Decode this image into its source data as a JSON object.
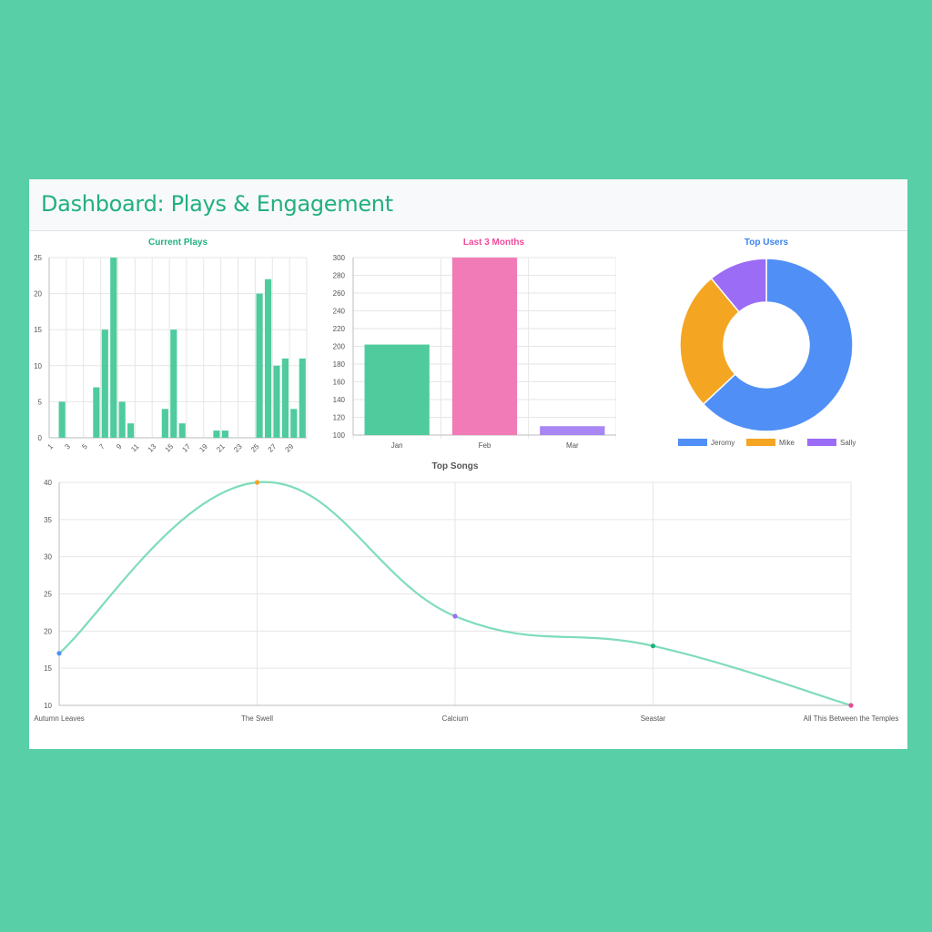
{
  "header": {
    "title": "Dashboard: Plays & Engagement"
  },
  "colors": {
    "green": "#4fcb9e",
    "pink": "#f07bb6",
    "purple": "#a887f4",
    "blue": "#4f8ff6",
    "orange": "#f4a522",
    "violet": "#9b6cf6",
    "title_green": "#21b07f",
    "title_pink": "#ef4b9a",
    "title_blue": "#3c83e8",
    "title_gray": "#555555"
  },
  "chart_data": [
    {
      "id": "current-plays",
      "type": "bar",
      "title": "Current Plays",
      "x": [
        "1",
        "2",
        "3",
        "4",
        "5",
        "6",
        "7",
        "8",
        "9",
        "10",
        "11",
        "12",
        "13",
        "14",
        "15",
        "16",
        "17",
        "18",
        "19",
        "20",
        "21",
        "22",
        "23",
        "24",
        "25",
        "26",
        "27",
        "28",
        "29",
        "30"
      ],
      "x_tick_labels": [
        "1",
        "3",
        "5",
        "7",
        "9",
        "11",
        "13",
        "15",
        "17",
        "19",
        "21",
        "23",
        "25",
        "27",
        "29"
      ],
      "values": [
        0,
        5,
        0,
        0,
        0,
        7,
        15,
        25,
        5,
        2,
        0,
        0,
        0,
        4,
        15,
        2,
        0,
        0,
        0,
        1,
        1,
        0,
        0,
        0,
        20,
        22,
        10,
        11,
        4,
        11
      ],
      "ylim": [
        0,
        25
      ],
      "yticks": [
        0,
        5,
        10,
        15,
        20,
        25
      ],
      "grid": true
    },
    {
      "id": "last-3-months",
      "type": "bar",
      "title": "Last 3 Months",
      "categories": [
        "Jan",
        "Feb",
        "Mar"
      ],
      "values": [
        202,
        300,
        110
      ],
      "ylim": [
        100,
        300
      ],
      "yticks": [
        100,
        120,
        140,
        160,
        180,
        200,
        220,
        240,
        260,
        280,
        300
      ],
      "grid": true
    },
    {
      "id": "top-users",
      "type": "pie",
      "title": "Top Users",
      "labels": [
        "Jeromy",
        "Mike",
        "Sally"
      ],
      "values": [
        63,
        26,
        11
      ],
      "legend": "bottom"
    },
    {
      "id": "top-songs",
      "type": "line",
      "title": "Top Songs",
      "categories": [
        "Autumn Leaves",
        "The Swell",
        "Calcium",
        "Seastar",
        "All This Between the Temples"
      ],
      "values": [
        17,
        40,
        22,
        18,
        10
      ],
      "ylim": [
        10,
        40
      ],
      "yticks": [
        10,
        15,
        20,
        25,
        30,
        35,
        40
      ],
      "grid": true
    }
  ]
}
